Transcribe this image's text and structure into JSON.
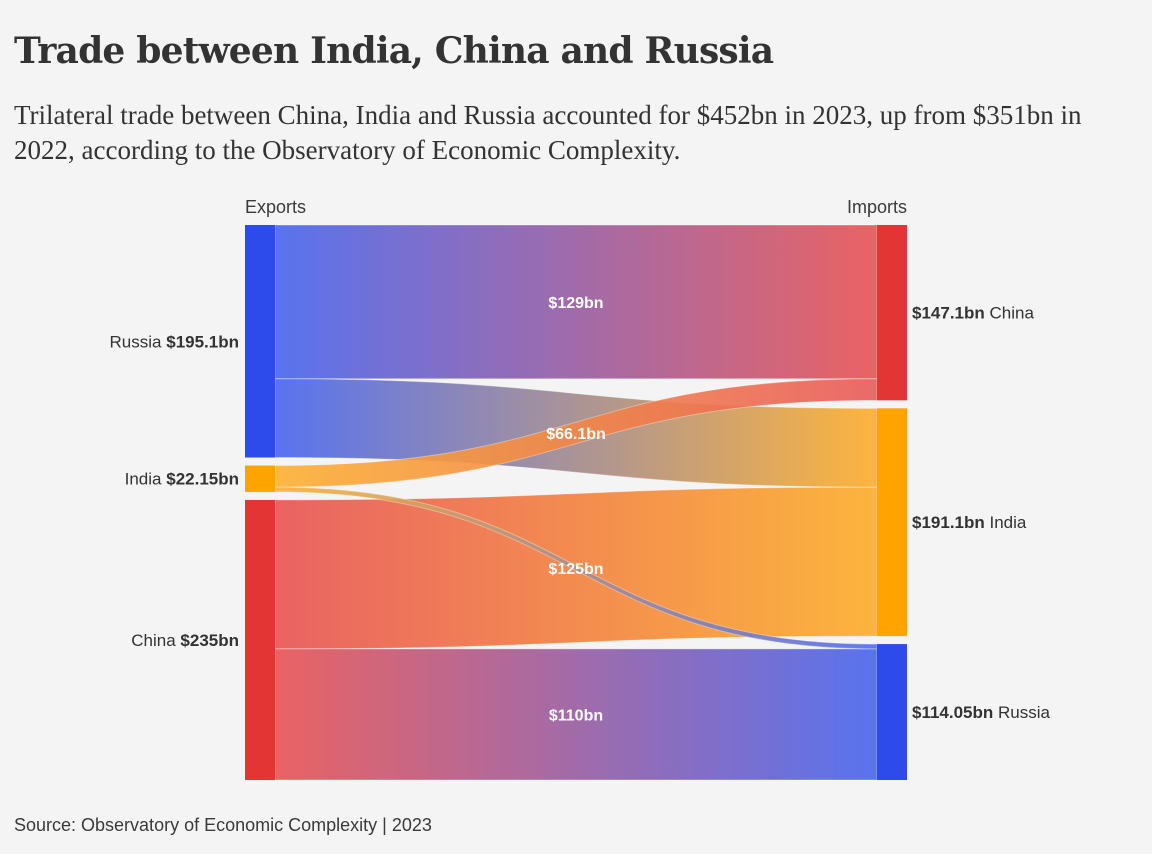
{
  "header": {
    "title": "Trade between India, China and Russia",
    "subtitle": "Trilateral trade between China, India and Russia accounted for $452bn in 2023, up from $351bn in 2022, according to the Observatory of Economic Complexity."
  },
  "footer": {
    "source": "Source: Observatory of Economic Complexity | 2023"
  },
  "colors": {
    "background": "#f4f4f4",
    "Russia": "#2d4bea",
    "India": "#ffa300",
    "China": "#e43535",
    "text": "#333333"
  },
  "chart_data": {
    "type": "sankey",
    "title": "Trade between India, China and Russia",
    "unit": "USD bn",
    "column_labels": {
      "left": "Exports",
      "right": "Imports"
    },
    "left_nodes": [
      {
        "id": "Russia",
        "label": "Russia",
        "value": 195.1,
        "value_label": "$195.1bn"
      },
      {
        "id": "India",
        "label": "India",
        "value": 22.15,
        "value_label": "$22.15bn"
      },
      {
        "id": "China",
        "label": "China",
        "value": 235,
        "value_label": "$235bn"
      }
    ],
    "right_nodes": [
      {
        "id": "China",
        "label": "China",
        "value": 147.1,
        "value_label": "$147.1bn"
      },
      {
        "id": "India",
        "label": "India",
        "value": 191.1,
        "value_label": "$191.1bn"
      },
      {
        "id": "Russia",
        "label": "Russia",
        "value": 114.05,
        "value_label": "$114.05bn"
      }
    ],
    "links": [
      {
        "source": "Russia",
        "target": "China",
        "value": 129,
        "label": "$129bn"
      },
      {
        "source": "Russia",
        "target": "India",
        "value": 66.1,
        "label": "$66.1bn"
      },
      {
        "source": "India",
        "target": "China",
        "value": 18.1,
        "label": ""
      },
      {
        "source": "India",
        "target": "Russia",
        "value": 4.05,
        "label": ""
      },
      {
        "source": "China",
        "target": "India",
        "value": 125,
        "label": "$125bn"
      },
      {
        "source": "China",
        "target": "Russia",
        "value": 110,
        "label": "$110bn"
      }
    ]
  }
}
